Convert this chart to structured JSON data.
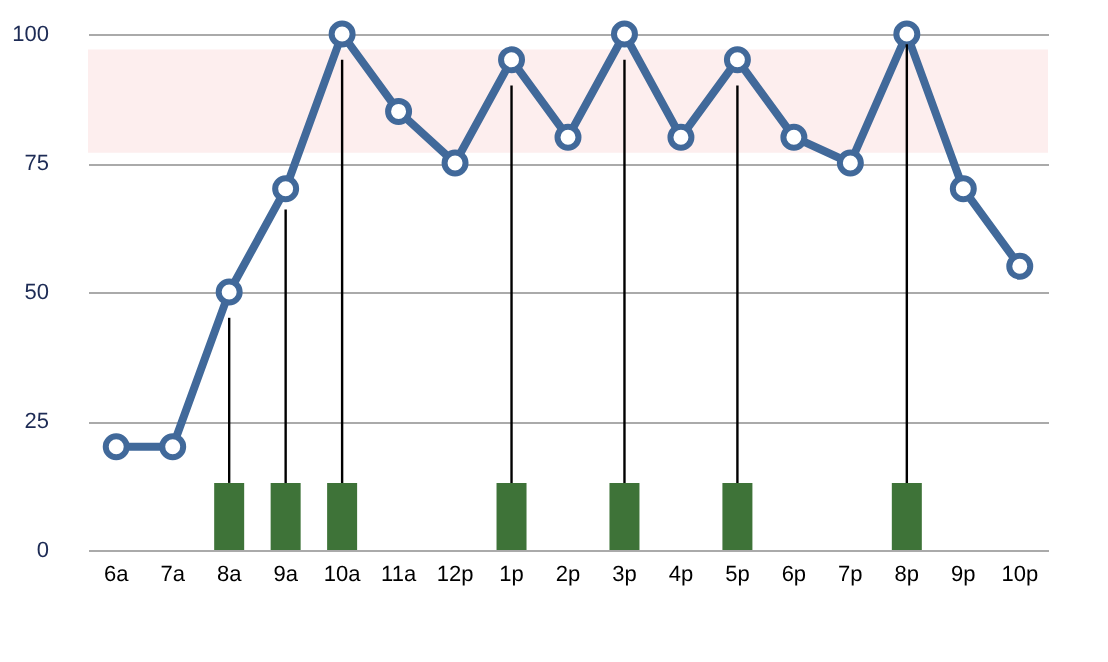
{
  "chart_data": {
    "type": "line",
    "categories": [
      "6a",
      "7a",
      "8a",
      "9a",
      "10a",
      "11a",
      "12p",
      "1p",
      "2p",
      "3p",
      "4p",
      "5p",
      "6p",
      "7p",
      "8p",
      "9p",
      "10p"
    ],
    "series": [
      {
        "color": "#41699a",
        "marker": "circle",
        "values": [
          20,
          20,
          50,
          70,
          100,
          85,
          75,
          95,
          80,
          100,
          80,
          95,
          80,
          75,
          100,
          70,
          55
        ]
      },
      {
        "type": "bar",
        "color": "#3e7338",
        "values": [
          null,
          null,
          13,
          13,
          13,
          null,
          null,
          13,
          null,
          13,
          null,
          13,
          null,
          null,
          13,
          null,
          null
        ],
        "errors": [
          null,
          null,
          [
            13,
            45
          ],
          [
            13,
            66
          ],
          [
            13,
            95
          ],
          null,
          null,
          [
            13,
            90
          ],
          null,
          [
            13,
            95
          ],
          null,
          [
            13,
            90
          ],
          null,
          null,
          [
            13,
            98
          ],
          null,
          null
        ]
      }
    ],
    "bands": [
      {
        "axis": "y",
        "from": 77,
        "to": 97,
        "color": "#fdeeee"
      }
    ],
    "ylim": [
      0,
      100
    ],
    "yticks": [
      0,
      25,
      50,
      75,
      100
    ],
    "grid": "y"
  }
}
